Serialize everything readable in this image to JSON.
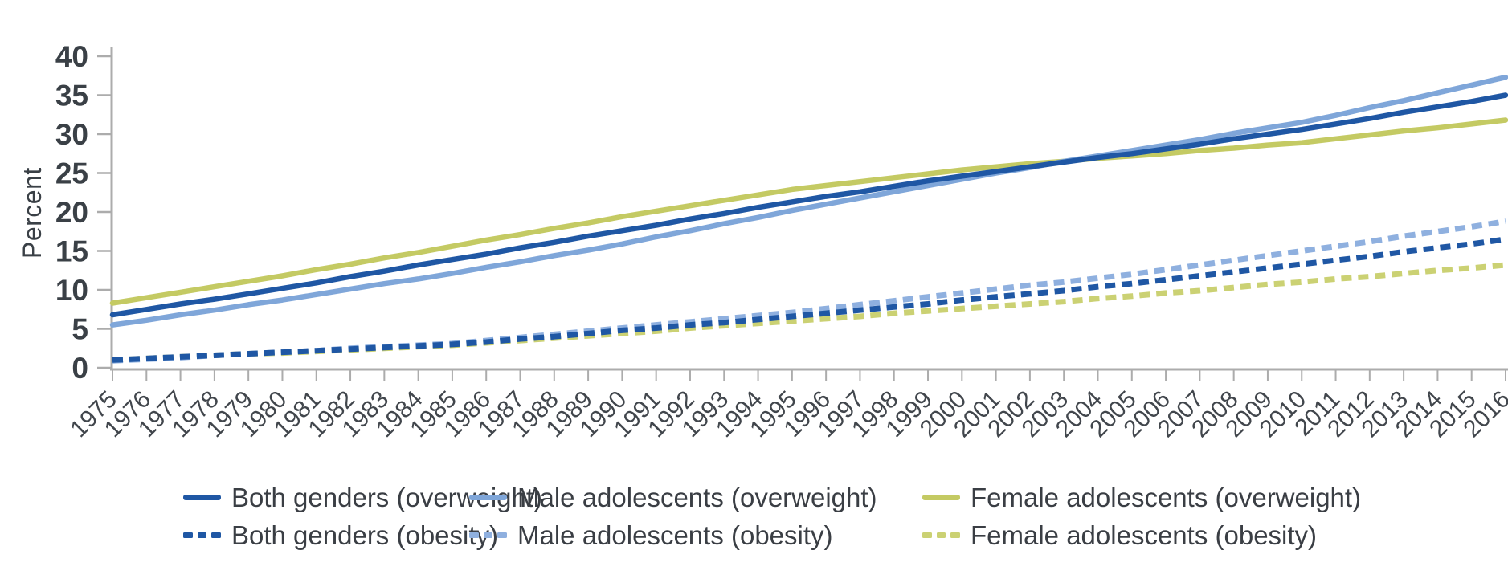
{
  "chart_data": {
    "type": "line",
    "title": "",
    "xlabel": "",
    "ylabel": "Percent",
    "ylim": [
      0,
      40
    ],
    "yticks": [
      0,
      5,
      10,
      15,
      20,
      25,
      30,
      35,
      40
    ],
    "grid": false,
    "legend_position": "bottom",
    "x": [
      1975,
      1976,
      1977,
      1978,
      1979,
      1980,
      1981,
      1982,
      1983,
      1984,
      1985,
      1986,
      1987,
      1988,
      1989,
      1990,
      1991,
      1992,
      1993,
      1994,
      1995,
      1996,
      1997,
      1998,
      1999,
      2000,
      2001,
      2002,
      2003,
      2004,
      2005,
      2006,
      2007,
      2008,
      2009,
      2010,
      2011,
      2012,
      2013,
      2014,
      2015,
      2016
    ],
    "series": [
      {
        "name": "Both genders (overweight)",
        "style": "solid",
        "color": "#1f57a4",
        "values": [
          6.8,
          7.5,
          8.2,
          8.8,
          9.5,
          10.2,
          10.9,
          11.7,
          12.4,
          13.2,
          13.9,
          14.6,
          15.4,
          16.1,
          16.9,
          17.6,
          18.3,
          19.1,
          19.8,
          20.6,
          21.3,
          22.0,
          22.6,
          23.3,
          24.0,
          24.6,
          25.2,
          25.8,
          26.4,
          27.0,
          27.5,
          28.1,
          28.7,
          29.4,
          30.0,
          30.6,
          31.3,
          32.0,
          32.8,
          33.5,
          34.2,
          35.0
        ]
      },
      {
        "name": "Male adolescents (overweight)",
        "style": "solid",
        "color": "#7fa6d9",
        "values": [
          5.5,
          6.1,
          6.8,
          7.4,
          8.1,
          8.7,
          9.4,
          10.1,
          10.8,
          11.4,
          12.1,
          12.9,
          13.6,
          14.4,
          15.1,
          15.9,
          16.8,
          17.6,
          18.5,
          19.3,
          20.2,
          21.0,
          21.8,
          22.6,
          23.4,
          24.2,
          25.0,
          25.7,
          26.5,
          27.2,
          27.9,
          28.6,
          29.3,
          30.1,
          30.8,
          31.5,
          32.4,
          33.4,
          34.3,
          35.3,
          36.3,
          37.3
        ]
      },
      {
        "name": "Female adolescents (overweight)",
        "style": "solid",
        "color": "#c4ca63",
        "values": [
          8.3,
          9.0,
          9.7,
          10.4,
          11.1,
          11.8,
          12.6,
          13.3,
          14.1,
          14.8,
          15.6,
          16.4,
          17.1,
          17.9,
          18.6,
          19.4,
          20.1,
          20.8,
          21.5,
          22.2,
          22.9,
          23.4,
          23.9,
          24.4,
          24.9,
          25.4,
          25.8,
          26.2,
          26.5,
          26.9,
          27.2,
          27.5,
          27.9,
          28.2,
          28.6,
          28.9,
          29.4,
          29.9,
          30.4,
          30.8,
          31.3,
          31.8
        ]
      },
      {
        "name": "Both genders (obesity)",
        "style": "dashed",
        "color": "#1f57a4",
        "values": [
          1.0,
          1.2,
          1.4,
          1.6,
          1.8,
          2.0,
          2.2,
          2.4,
          2.6,
          2.8,
          3.0,
          3.3,
          3.7,
          4.0,
          4.4,
          4.8,
          5.1,
          5.5,
          5.8,
          6.2,
          6.6,
          7.0,
          7.4,
          7.8,
          8.2,
          8.7,
          9.1,
          9.5,
          9.9,
          10.4,
          10.8,
          11.3,
          11.8,
          12.3,
          12.8,
          13.3,
          13.8,
          14.3,
          14.9,
          15.4,
          15.9,
          16.5
        ]
      },
      {
        "name": "Male adolescents (obesity)",
        "style": "dashed",
        "color": "#8fb0df",
        "values": [
          0.9,
          1.1,
          1.3,
          1.6,
          1.8,
          2.0,
          2.2,
          2.5,
          2.7,
          2.9,
          3.1,
          3.5,
          3.9,
          4.3,
          4.7,
          5.1,
          5.5,
          5.9,
          6.3,
          6.7,
          7.1,
          7.6,
          8.1,
          8.6,
          9.1,
          9.6,
          10.1,
          10.6,
          11.0,
          11.5,
          12.0,
          12.6,
          13.2,
          13.8,
          14.4,
          15.0,
          15.6,
          16.2,
          16.9,
          17.5,
          18.1,
          18.8
        ]
      },
      {
        "name": "Female adolescents (obesity)",
        "style": "dashed",
        "color": "#cbd173",
        "values": [
          1.0,
          1.2,
          1.4,
          1.6,
          1.8,
          1.9,
          2.1,
          2.3,
          2.5,
          2.7,
          2.9,
          3.2,
          3.5,
          3.8,
          4.1,
          4.4,
          4.7,
          5.1,
          5.4,
          5.7,
          6.0,
          6.3,
          6.6,
          7.0,
          7.3,
          7.6,
          7.9,
          8.2,
          8.5,
          8.9,
          9.2,
          9.6,
          9.9,
          10.3,
          10.7,
          11.0,
          11.4,
          11.7,
          12.1,
          12.5,
          12.8,
          13.2
        ]
      }
    ]
  },
  "colors": {
    "axis": "#acacac",
    "tick_text": "#3a4046",
    "legend_text": "#3a3e44"
  }
}
